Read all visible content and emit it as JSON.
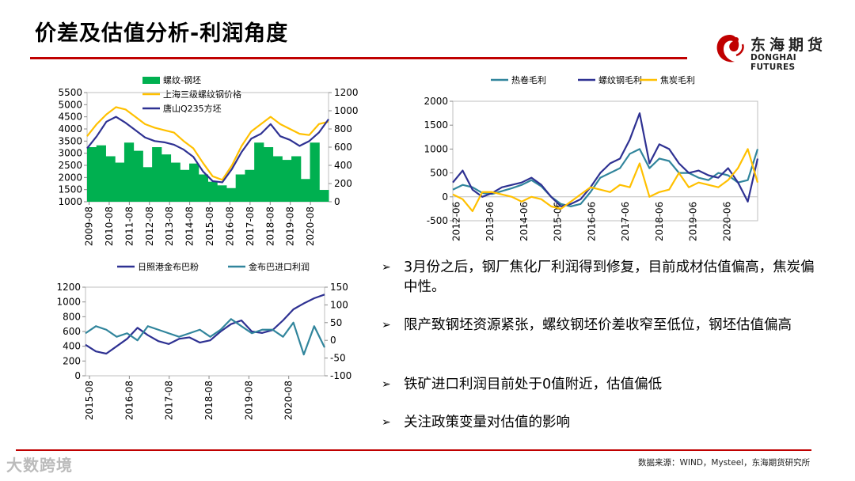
{
  "page": {
    "title": "价差及估值分析-利润角度",
    "source_note": "数据来源：WIND，Mysteel，东海期货研究所",
    "watermark": "大数跨境"
  },
  "logo": {
    "cn": "东海期货",
    "en": "DONGHAI FUTURES"
  },
  "colors": {
    "accent": "#c00000",
    "green": "#00b050",
    "yellow": "#ffc000",
    "navy": "#2e3192",
    "teal": "#31859c"
  },
  "bullets": [
    "3月份之后，钢厂焦化厂利润得到修复，目前成材估值偏高，焦炭偏中性。",
    "限产致钢坯资源紧张，螺纹钢坯价差收窄至低位，钢坯估值偏高",
    "铁矿进口利润目前处于0值附近，估值偏低",
    "关注政策变量对估值的影响"
  ],
  "chart_data": [
    {
      "type": "area+line",
      "title": "",
      "legend": [
        "螺纹-钢坯",
        "上海三级螺纹钢价格",
        "唐山Q235方坯"
      ],
      "y_left": {
        "ticks": [
          1000,
          1500,
          2000,
          2500,
          3000,
          3500,
          4000,
          4500,
          5000,
          5500
        ],
        "ylim": [
          1000,
          5500
        ]
      },
      "y_right": {
        "ticks": [
          0,
          200,
          400,
          600,
          800,
          1000,
          1200
        ],
        "ylim": [
          0,
          1200
        ]
      },
      "x_ticks": [
        "2009-08",
        "2010-08",
        "2011-08",
        "2012-08",
        "2013-08",
        "2014-08",
        "2015-08",
        "2016-08",
        "2017-08",
        "2018-08",
        "2019-08",
        "2020-08"
      ],
      "series": [
        {
          "name": "螺纹-钢坯",
          "axis": "right",
          "kind": "area",
          "color": "#00b050",
          "values": [
            600,
            620,
            500,
            430,
            650,
            560,
            380,
            600,
            520,
            430,
            350,
            420,
            300,
            220,
            180,
            150,
            300,
            350,
            650,
            600,
            500,
            460,
            500,
            250,
            650,
            130
          ]
        },
        {
          "name": "上海三级螺纹钢价格",
          "axis": "left",
          "kind": "line",
          "color": "#ffc000",
          "values": [
            3700,
            4200,
            4600,
            4900,
            4800,
            4500,
            4200,
            4050,
            3950,
            3850,
            3500,
            3200,
            2600,
            2050,
            1900,
            2500,
            3300,
            3900,
            4200,
            4500,
            4200,
            4000,
            3800,
            3750,
            4200,
            4300
          ]
        },
        {
          "name": "唐山Q235方坯",
          "axis": "left",
          "kind": "line",
          "color": "#2e3192",
          "values": [
            3200,
            3700,
            4300,
            4500,
            4250,
            3950,
            3650,
            3500,
            3450,
            3350,
            3150,
            2850,
            2250,
            1850,
            1800,
            2350,
            3050,
            3600,
            3800,
            4200,
            3700,
            3550,
            3300,
            3500,
            3850,
            4400
          ]
        }
      ]
    },
    {
      "type": "line",
      "title": "",
      "legend": [
        "热卷毛利",
        "螺纹钢毛利",
        "焦炭毛利"
      ],
      "y": {
        "ticks": [
          -500,
          0,
          500,
          1000,
          1500,
          2000
        ],
        "ylim": [
          -500,
          2000
        ]
      },
      "x_ticks": [
        "2012-06",
        "2013-06",
        "2014-06",
        "2015-06",
        "2016-06",
        "2017-06",
        "2018-06",
        "2019-06",
        "2020-06"
      ],
      "series": [
        {
          "name": "热卷毛利",
          "color": "#31859c",
          "values": [
            150,
            250,
            200,
            80,
            60,
            120,
            180,
            250,
            350,
            220,
            0,
            -150,
            -200,
            -150,
            100,
            400,
            500,
            600,
            900,
            1000,
            600,
            800,
            750,
            500,
            500,
            400,
            350,
            500,
            450,
            300,
            350,
            1000
          ]
        },
        {
          "name": "螺纹钢毛利",
          "color": "#2e3192",
          "values": [
            300,
            550,
            150,
            0,
            80,
            200,
            250,
            300,
            400,
            250,
            0,
            -200,
            -150,
            -50,
            200,
            500,
            700,
            800,
            1200,
            1750,
            700,
            1100,
            1000,
            700,
            500,
            550,
            450,
            400,
            600,
            300,
            -100,
            800
          ]
        },
        {
          "name": "焦炭毛利",
          "color": "#ffc000",
          "values": [
            50,
            -50,
            -300,
            100,
            100,
            50,
            0,
            -100,
            0,
            -50,
            -200,
            -250,
            -100,
            50,
            200,
            150,
            100,
            250,
            200,
            700,
            0,
            100,
            150,
            500,
            200,
            300,
            250,
            200,
            350,
            600,
            1000,
            300
          ]
        }
      ]
    },
    {
      "type": "line",
      "title": "",
      "legend": [
        "日照港金布巴粉",
        "金布巴进口利润"
      ],
      "y_left": {
        "ticks": [
          0,
          200,
          400,
          600,
          800,
          1000,
          1200
        ],
        "ylim": [
          0,
          1200
        ]
      },
      "y_right": {
        "ticks": [
          -100,
          -50,
          0,
          50,
          100,
          150
        ],
        "ylim": [
          -100,
          150
        ]
      },
      "x_ticks": [
        "2015-08",
        "2016-08",
        "2017-08",
        "2018-08",
        "2019-08",
        "2020-08"
      ],
      "series": [
        {
          "name": "日照港金布巴粉",
          "axis": "left",
          "color": "#2e3192",
          "values": [
            420,
            330,
            300,
            400,
            500,
            650,
            550,
            470,
            430,
            500,
            520,
            450,
            480,
            600,
            700,
            750,
            600,
            580,
            620,
            750,
            900,
            980,
            1050,
            1100
          ]
        },
        {
          "name": "金布巴进口利润",
          "axis": "right",
          "color": "#31859c",
          "values": [
            20,
            40,
            30,
            10,
            20,
            0,
            40,
            30,
            20,
            10,
            20,
            30,
            10,
            30,
            60,
            40,
            20,
            30,
            30,
            10,
            50,
            -40,
            40,
            -20
          ]
        }
      ]
    }
  ]
}
